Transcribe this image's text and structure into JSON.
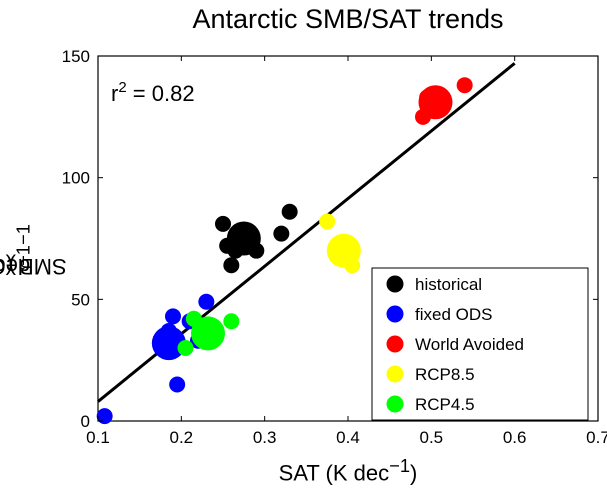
{
  "chart_data": {
    "type": "scatter",
    "title": "Antarctic SMB/SAT trends",
    "xlabel_main": "SAT (K dec",
    "xlabel_sup": "−1",
    "xlabel_close": ")",
    "ylabel_main": "SMB (Gt yr",
    "ylabel_sup1": "−1",
    "ylabel_mid": " dec",
    "ylabel_sup2": "−1",
    "ylabel_close": ")",
    "xlim": [
      0.1,
      0.7
    ],
    "ylim": [
      0,
      150
    ],
    "xticks": [
      "0.1",
      "0.2",
      "0.3",
      "0.4",
      "0.5",
      "0.6",
      "0.7"
    ],
    "yticks": [
      "0",
      "50",
      "100",
      "150"
    ],
    "annotation_label": "r",
    "annotation_sup": "2",
    "annotation_value": " = 0.82",
    "fit_line": {
      "x": [
        0.1,
        0.6
      ],
      "y": [
        8,
        147
      ]
    },
    "legend_position": "bottom-right",
    "series": [
      {
        "name": "historical",
        "color": "#000000",
        "points": [
          [
            0.275,
            75,
            3
          ],
          [
            0.25,
            81,
            1
          ],
          [
            0.255,
            72,
            1
          ],
          [
            0.26,
            64,
            1
          ],
          [
            0.265,
            70,
            1
          ],
          [
            0.29,
            70,
            1
          ],
          [
            0.32,
            77,
            1
          ],
          [
            0.33,
            86,
            1
          ]
        ]
      },
      {
        "name": "fixed ODS",
        "color": "#0000ff",
        "points": [
          [
            0.185,
            32,
            3
          ],
          [
            0.108,
            2,
            1
          ],
          [
            0.185,
            37,
            1
          ],
          [
            0.19,
            43,
            1
          ],
          [
            0.195,
            15,
            1
          ],
          [
            0.21,
            41,
            1
          ],
          [
            0.23,
            49,
            1
          ],
          [
            0.22,
            33,
            1
          ]
        ]
      },
      {
        "name": "World Avoided",
        "color": "#ff0000",
        "points": [
          [
            0.505,
            131,
            3
          ],
          [
            0.49,
            125,
            1
          ],
          [
            0.495,
            133,
            1
          ],
          [
            0.54,
            138,
            1
          ]
        ]
      },
      {
        "name": "RCP8.5",
        "color": "#ffff00",
        "points": [
          [
            0.395,
            70,
            3
          ],
          [
            0.375,
            82,
            1
          ],
          [
            0.405,
            64,
            1
          ]
        ]
      },
      {
        "name": "RCP4.5",
        "color": "#00ff00",
        "points": [
          [
            0.232,
            36,
            3
          ],
          [
            0.26,
            41,
            1
          ],
          [
            0.205,
            30,
            1
          ],
          [
            0.215,
            42,
            1
          ]
        ]
      }
    ]
  }
}
